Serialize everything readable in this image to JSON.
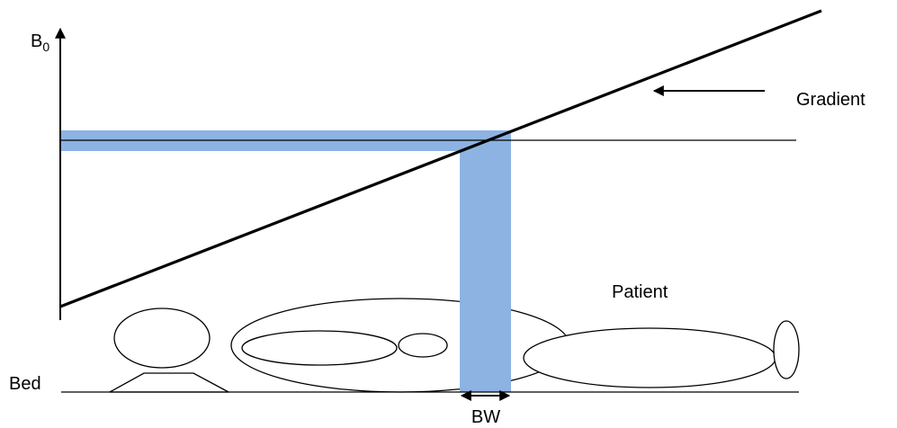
{
  "axis": {
    "label": "B",
    "subscript": "0"
  },
  "labels": {
    "gradient": "Gradient",
    "patient": "Patient",
    "bed": "Bed",
    "bandwidth": "BW"
  }
}
